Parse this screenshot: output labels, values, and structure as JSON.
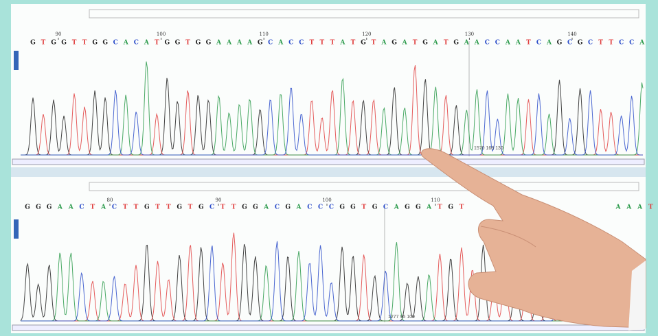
{
  "panels": [
    {
      "ruler": [
        90,
        100,
        110,
        120,
        130,
        140
      ],
      "sequence": [
        "G",
        "T",
        "G",
        "G",
        "T",
        "T",
        "G",
        "G",
        "C",
        "A",
        "C",
        "A",
        "T",
        "G",
        "G",
        "T",
        "G",
        "G",
        "A",
        "A",
        "A",
        "A",
        "G",
        "C",
        "A",
        "C",
        "C",
        "T",
        "T",
        "T",
        "A",
        "T",
        "G",
        "T",
        "A",
        "G",
        "A",
        "T",
        "G",
        "A",
        "T",
        "G",
        "A",
        "A",
        "C",
        "C",
        "A",
        "A",
        "T",
        "C",
        "A",
        "G",
        "C",
        "G",
        "C",
        "T",
        "T",
        "C",
        "C",
        "A"
      ],
      "annotation": "1570 168 130"
    },
    {
      "ruler": [
        80,
        90,
        100,
        110
      ],
      "sequence": [
        "G",
        "G",
        "G",
        "A",
        "A",
        "C",
        "T",
        "A",
        "C",
        "T",
        "T",
        "G",
        "T",
        "T",
        "G",
        "T",
        "G",
        "C",
        "T",
        "T",
        "G",
        "G",
        "A",
        "C",
        "G",
        "A",
        "C",
        "C",
        "C",
        "G",
        "G",
        "T",
        "G",
        "C",
        "A",
        "G",
        "G",
        "A",
        "T",
        "G",
        "T"
      ],
      "sequence_end": [
        "A",
        "A",
        "A",
        "T"
      ],
      "annotation": "1277 95 109"
    }
  ]
}
